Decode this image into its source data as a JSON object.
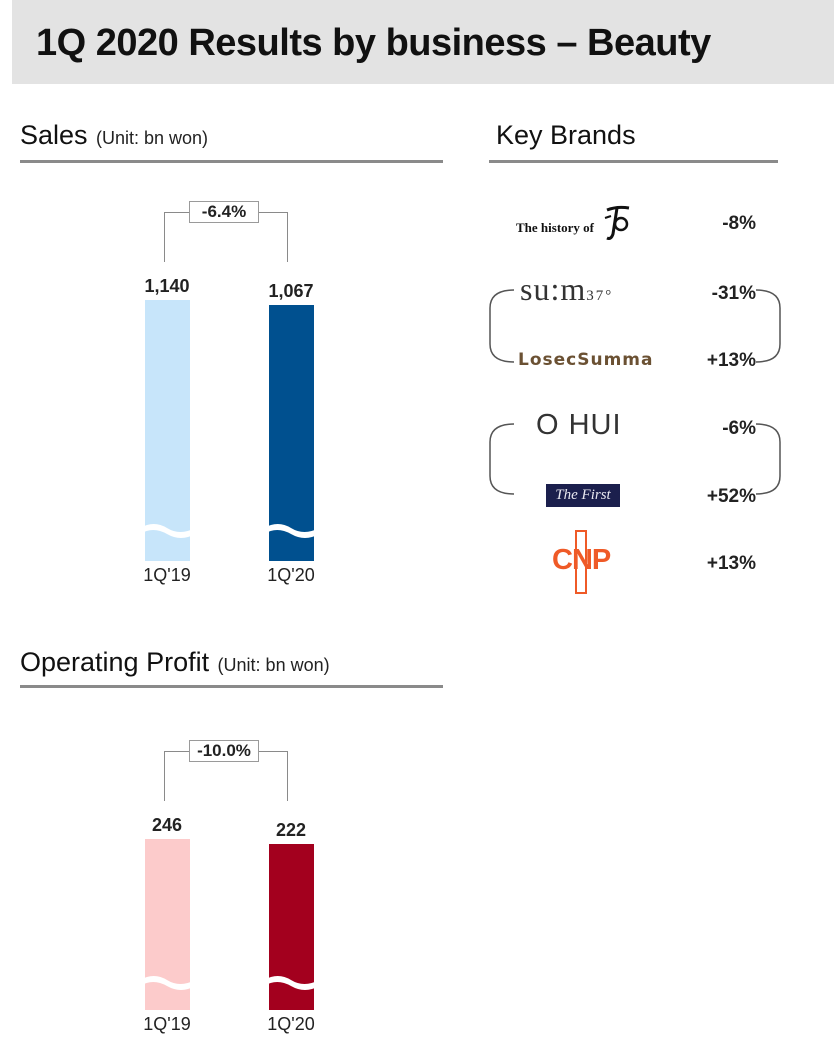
{
  "page": {
    "title": "1Q 2020 Results by business – Beauty"
  },
  "sales": {
    "heading": "Sales",
    "unit": "(Unit: bn won)"
  },
  "operating_profit": {
    "heading": "Operating Profit",
    "unit": "(Unit: bn won)"
  },
  "key_brands": {
    "heading": "Key Brands",
    "items": [
      {
        "logo_text": "The history of",
        "logo_icon": "whoo-calligraphy-icon",
        "change": "-8%"
      },
      {
        "logo_text": "su:m",
        "logo_sub": "37°",
        "change": "-31%"
      },
      {
        "logo_text": "LosecSumma",
        "change": "+13%"
      },
      {
        "logo_text": "O HUI",
        "change": "-6%"
      },
      {
        "logo_text": "The First",
        "change": "+52%"
      },
      {
        "logo_text": "CNP",
        "change": "+13%"
      }
    ]
  },
  "chart_data": [
    {
      "type": "bar",
      "categories": [
        "1Q'19",
        "1Q'20"
      ],
      "values": [
        1140,
        1067
      ],
      "value_labels": [
        "1,140",
        "1,067"
      ],
      "change_label": "-6.4%",
      "axis_break": true,
      "colors": [
        "#c7e5fa",
        "#00508f"
      ]
    },
    {
      "type": "bar",
      "categories": [
        "1Q'19",
        "1Q'20"
      ],
      "values": [
        246,
        222
      ],
      "value_labels": [
        "246",
        "222"
      ],
      "change_label": "-10.0%",
      "axis_break": true,
      "colors": [
        "#fccbcb",
        "#a3001e"
      ]
    }
  ]
}
